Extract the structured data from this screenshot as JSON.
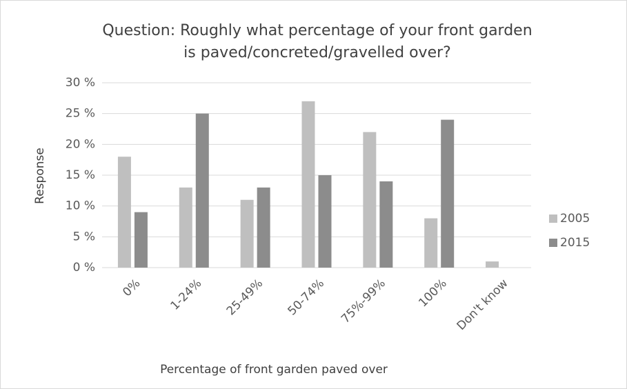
{
  "chart_data": {
    "type": "bar",
    "title": [
      "Question:  Roughly what percentage of your front garden",
      "is paved/concreted/gravelled over?"
    ],
    "xlabel": "Percentage of front garden paved over",
    "ylabel": "Response",
    "categories": [
      "0%",
      "1-24%",
      "25-49%",
      "50-74%",
      "75%-99%",
      "100%",
      "Don't know"
    ],
    "series": [
      {
        "name": "2005",
        "color": "#bfbfbf",
        "values": [
          18,
          13,
          11,
          27,
          22,
          8,
          1
        ]
      },
      {
        "name": "2015",
        "color": "#8c8c8c",
        "values": [
          9,
          25,
          13,
          15,
          14,
          24,
          0
        ]
      }
    ],
    "ylim": [
      0,
      30
    ],
    "yticks": [
      {
        "value": 0,
        "label": "0 %"
      },
      {
        "value": 5,
        "label": "5 %"
      },
      {
        "value": 10,
        "label": "10 %"
      },
      {
        "value": 15,
        "label": "15 %"
      },
      {
        "value": 20,
        "label": "20 %"
      },
      {
        "value": 25,
        "label": "25 %"
      },
      {
        "value": 30,
        "label": "30 %"
      }
    ],
    "grid": true,
    "legend": "right"
  }
}
